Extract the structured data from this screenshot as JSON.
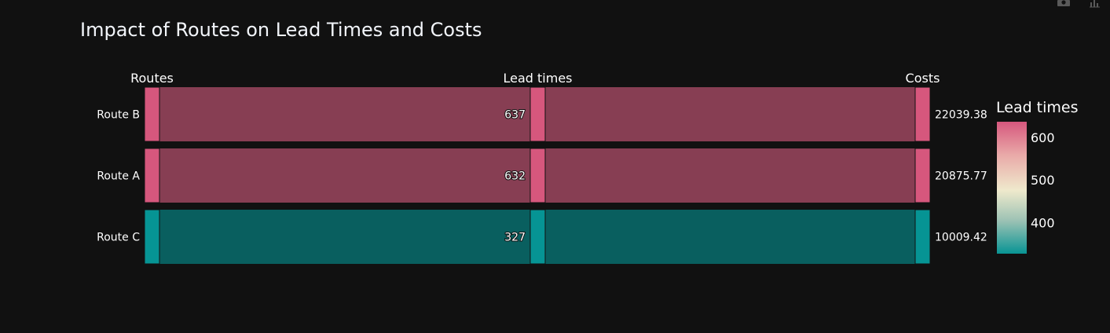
{
  "chart_data": {
    "type": "parallel_categories",
    "title": "Impact of Routes on Lead Times and Costs",
    "dimensions": [
      {
        "label": "Routes",
        "categories": [
          "Route B",
          "Route A",
          "Route C"
        ]
      },
      {
        "label": "Lead times",
        "categories": [
          "637",
          "632",
          "327"
        ]
      },
      {
        "label": "Costs",
        "categories": [
          "22039.38",
          "20875.77",
          "10009.42"
        ]
      }
    ],
    "paths": [
      {
        "route": "Route B",
        "lead_time": 637,
        "cost": 22039.38
      },
      {
        "route": "Route A",
        "lead_time": 632,
        "cost": 20875.77
      },
      {
        "route": "Route C",
        "lead_time": 327,
        "cost": 10009.42
      }
    ],
    "colorbar": {
      "title": "Lead times",
      "ticks": [
        "600",
        "500",
        "400"
      ],
      "tick_values": [
        600,
        500,
        400
      ],
      "range": [
        327,
        637
      ],
      "colors": [
        "#d6577d",
        "#efe9cc",
        "#089494"
      ]
    },
    "colors": {
      "background": "#111111",
      "high": "#d6577d",
      "low": "#069494",
      "ribbon_high": "#873e53",
      "ribbon_low": "#095f5f"
    }
  },
  "modebar": {
    "icons": [
      "camera-icon",
      "bar-chart-icon"
    ]
  }
}
